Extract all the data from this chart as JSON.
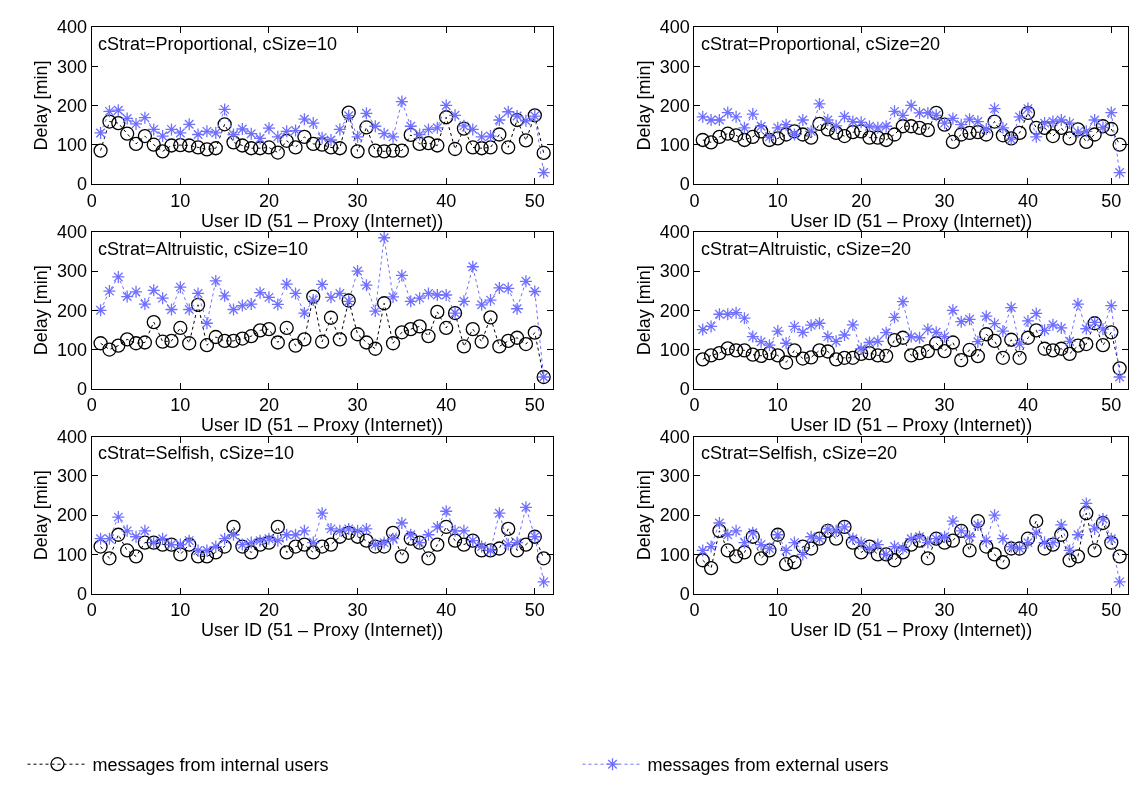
{
  "chart_data": [
    {
      "type": "line",
      "title": "cStrat=Proportional, cSize=10",
      "xlabel": "User ID (51 – Proxy (Internet))",
      "ylabel": "Delay [min]",
      "x": [
        1,
        2,
        3,
        4,
        5,
        6,
        7,
        8,
        9,
        10,
        11,
        12,
        13,
        14,
        15,
        16,
        17,
        18,
        19,
        20,
        21,
        22,
        23,
        24,
        25,
        26,
        27,
        28,
        29,
        30,
        31,
        32,
        33,
        34,
        35,
        36,
        37,
        38,
        39,
        40,
        41,
        42,
        43,
        44,
        45,
        46,
        47,
        48,
        49,
        50,
        51
      ],
      "xlim": [
        0,
        52
      ],
      "xticks": [
        0,
        10,
        20,
        30,
        40,
        50
      ],
      "ylim": [
        0,
        400
      ],
      "yticks": [
        0,
        100,
        200,
        300,
        400
      ],
      "legend": "bottom",
      "line_style": "dotted",
      "series": [
        {
          "name": "messages from internal users",
          "color": "#000000",
          "marker": "circle",
          "values": [
            85,
            159,
            155,
            128,
            102,
            122,
            100,
            83,
            98,
            99,
            98,
            93,
            88,
            91,
            152,
            106,
            98,
            91,
            91,
            93,
            80,
            110,
            93,
            120,
            102,
            100,
            93,
            91,
            182,
            83,
            144,
            85,
            83,
            85,
            85,
            125,
            102,
            104,
            98,
            170,
            89,
            141,
            93,
            91,
            93,
            126,
            93,
            163,
            111,
            175,
            79
          ]
        },
        {
          "name": "messages from external users",
          "color": "#7070ff",
          "marker": "cross",
          "values": [
            130,
            185,
            188,
            167,
            153,
            169,
            139,
            122,
            139,
            130,
            152,
            126,
            134,
            130,
            190,
            126,
            140,
            128,
            116,
            142,
            120,
            134,
            136,
            165,
            155,
            118,
            112,
            139,
            174,
            120,
            180,
            147,
            128,
            120,
            210,
            147,
            126,
            139,
            143,
            200,
            175,
            148,
            139,
            120,
            122,
            163,
            184,
            173,
            161,
            173,
            29
          ]
        }
      ]
    },
    {
      "type": "line",
      "title": "cStrat=Proportional, cSize=20",
      "xlabel": "User ID (51 – Proxy (Internet))",
      "ylabel": "Delay [min]",
      "x": [
        1,
        2,
        3,
        4,
        5,
        6,
        7,
        8,
        9,
        10,
        11,
        12,
        13,
        14,
        15,
        16,
        17,
        18,
        19,
        20,
        21,
        22,
        23,
        24,
        25,
        26,
        27,
        28,
        29,
        30,
        31,
        32,
        33,
        34,
        35,
        36,
        37,
        38,
        39,
        40,
        41,
        42,
        43,
        44,
        45,
        46,
        47,
        48,
        49,
        50,
        51
      ],
      "xlim": [
        0,
        52
      ],
      "xticks": [
        0,
        10,
        20,
        30,
        40,
        50
      ],
      "ylim": [
        0,
        400
      ],
      "yticks": [
        0,
        100,
        200,
        300,
        400
      ],
      "legend": "bottom",
      "line_style": "dotted",
      "series": [
        {
          "name": "messages from internal users",
          "color": "#000000",
          "marker": "circle",
          "values": [
            112,
            106,
            120,
            128,
            124,
            112,
            120,
            134,
            112,
            116,
            126,
            134,
            126,
            118,
            153,
            139,
            130,
            122,
            132,
            134,
            118,
            118,
            112,
            126,
            147,
            147,
            143,
            137,
            181,
            151,
            107,
            126,
            130,
            132,
            126,
            159,
            124,
            116,
            130,
            181,
            143,
            143,
            122,
            143,
            116,
            139,
            107,
            126,
            147,
            140,
            100
          ]
        },
        {
          "name": "messages from external users",
          "color": "#7070ff",
          "marker": "cross",
          "values": [
            171,
            163,
            163,
            182,
            171,
            143,
            178,
            147,
            120,
            143,
            151,
            126,
            163,
            134,
            204,
            163,
            148,
            172,
            159,
            157,
            147,
            143,
            147,
            185,
            175,
            200,
            181,
            181,
            175,
            155,
            167,
            151,
            165,
            159,
            140,
            192,
            143,
            114,
            171,
            192,
            120,
            155,
            159,
            163,
            155,
            132,
            134,
            163,
            144,
            182,
            29
          ]
        }
      ]
    },
    {
      "type": "line",
      "title": "cStrat=Altruistic, cSize=10",
      "xlabel": "User ID (51 – Proxy (Internet))",
      "ylabel": "Delay [min]",
      "x": [
        1,
        2,
        3,
        4,
        5,
        6,
        7,
        8,
        9,
        10,
        11,
        12,
        13,
        14,
        15,
        16,
        17,
        18,
        19,
        20,
        21,
        22,
        23,
        24,
        25,
        26,
        27,
        28,
        29,
        30,
        31,
        32,
        33,
        34,
        35,
        36,
        37,
        38,
        39,
        40,
        41,
        42,
        43,
        44,
        45,
        46,
        47,
        48,
        49,
        50,
        51
      ],
      "xlim": [
        0,
        52
      ],
      "xticks": [
        0,
        10,
        20,
        30,
        40,
        50
      ],
      "ylim": [
        0,
        400
      ],
      "yticks": [
        0,
        100,
        200,
        300,
        400
      ],
      "legend": "bottom",
      "line_style": "dotted",
      "series": [
        {
          "name": "messages from internal users",
          "color": "#000000",
          "marker": "circle",
          "values": [
            116,
            100,
            110,
            126,
            116,
            118,
            170,
            120,
            122,
            155,
            116,
            214,
            111,
            132,
            122,
            122,
            128,
            134,
            149,
            152,
            118,
            155,
            110,
            126,
            235,
            120,
            181,
            126,
            225,
            139,
            118,
            102,
            218,
            116,
            144,
            152,
            159,
            134,
            196,
            155,
            193,
            108,
            152,
            120,
            182,
            108,
            122,
            130,
            114,
            143,
            30
          ]
        },
        {
          "name": "messages from external users",
          "color": "#7070ff",
          "marker": "cross",
          "values": [
            200,
            249,
            285,
            235,
            247,
            216,
            251,
            231,
            202,
            259,
            202,
            243,
            167,
            275,
            237,
            202,
            212,
            216,
            245,
            233,
            215,
            267,
            243,
            193,
            226,
            266,
            233,
            243,
            223,
            300,
            264,
            198,
            385,
            234,
            289,
            223,
            231,
            243,
            239,
            239,
            193,
            223,
            311,
            214,
            226,
            257,
            256,
            204,
            274,
            248,
            30
          ]
        }
      ]
    },
    {
      "type": "line",
      "title": "cStrat=Altruistic, cSize=20",
      "xlabel": "User ID (51 – Proxy (Internet))",
      "ylabel": "Delay [min]",
      "x": [
        1,
        2,
        3,
        4,
        5,
        6,
        7,
        8,
        9,
        10,
        11,
        12,
        13,
        14,
        15,
        16,
        17,
        18,
        19,
        20,
        21,
        22,
        23,
        24,
        25,
        26,
        27,
        28,
        29,
        30,
        31,
        32,
        33,
        34,
        35,
        36,
        37,
        38,
        39,
        40,
        41,
        42,
        43,
        44,
        45,
        46,
        47,
        48,
        49,
        50,
        51
      ],
      "xlim": [
        0,
        52
      ],
      "xticks": [
        0,
        10,
        20,
        30,
        40,
        50
      ],
      "ylim": [
        0,
        400
      ],
      "yticks": [
        0,
        100,
        200,
        300,
        400
      ],
      "legend": "bottom",
      "line_style": "dotted",
      "series": [
        {
          "name": "messages from internal users",
          "color": "#000000",
          "marker": "circle",
          "values": [
            75,
            85,
            91,
            103,
            98,
            98,
            87,
            84,
            91,
            85,
            67,
            98,
            77,
            80,
            98,
            95,
            75,
            79,
            79,
            89,
            91,
            85,
            84,
            124,
            130,
            85,
            91,
            96,
            116,
            96,
            118,
            73,
            99,
            83,
            139,
            122,
            79,
            125,
            79,
            130,
            149,
            102,
            98,
            102,
            89,
            110,
            114,
            167,
            111,
            144,
            52
          ]
        },
        {
          "name": "messages from external users",
          "color": "#7070ff",
          "marker": "cross",
          "values": [
            151,
            159,
            190,
            190,
            194,
            180,
            133,
            120,
            111,
            147,
            116,
            159,
            144,
            162,
            167,
            133,
            121,
            137,
            163,
            102,
            118,
            121,
            143,
            182,
            222,
            133,
            130,
            152,
            144,
            133,
            200,
            171,
            177,
            120,
            185,
            166,
            147,
            207,
            114,
            173,
            192,
            149,
            163,
            155,
            121,
            216,
            153,
            169,
            152,
            212,
            30
          ]
        }
      ]
    },
    {
      "type": "line",
      "title": "cStrat=Selfish, cSize=10",
      "xlabel": "User ID (51 – Proxy (Internet))",
      "ylabel": "Delay [min]",
      "x": [
        1,
        2,
        3,
        4,
        5,
        6,
        7,
        8,
        9,
        10,
        11,
        12,
        13,
        14,
        15,
        16,
        17,
        18,
        19,
        20,
        21,
        22,
        23,
        24,
        25,
        26,
        27,
        28,
        29,
        30,
        31,
        32,
        33,
        34,
        35,
        36,
        37,
        38,
        39,
        40,
        41,
        42,
        43,
        44,
        45,
        46,
        47,
        48,
        49,
        50,
        51
      ],
      "xlim": [
        0,
        52
      ],
      "xticks": [
        0,
        10,
        20,
        30,
        40,
        50
      ],
      "ylim": [
        0,
        400
      ],
      "yticks": [
        0,
        100,
        200,
        300,
        400
      ],
      "legend": "bottom",
      "line_style": "dotted",
      "series": [
        {
          "name": "messages from internal users",
          "color": "#000000",
          "marker": "circle",
          "values": [
            120,
            90,
            150,
            110,
            95,
            130,
            130,
            125,
            125,
            100,
            125,
            95,
            95,
            105,
            120,
            170,
            120,
            105,
            125,
            130,
            170,
            105,
            120,
            125,
            105,
            120,
            125,
            145,
            155,
            145,
            135,
            120,
            120,
            155,
            95,
            140,
            130,
            90,
            125,
            170,
            135,
            125,
            135,
            110,
            110,
            115,
            165,
            110,
            125,
            145,
            90
          ]
        },
        {
          "name": "messages from external users",
          "color": "#7070ff",
          "marker": "cross",
          "values": [
            140,
            140,
            195,
            160,
            145,
            160,
            130,
            140,
            125,
            125,
            135,
            110,
            110,
            120,
            140,
            150,
            125,
            130,
            135,
            140,
            135,
            150,
            150,
            160,
            130,
            205,
            165,
            160,
            165,
            160,
            165,
            125,
            130,
            140,
            180,
            150,
            130,
            150,
            170,
            210,
            160,
            160,
            135,
            120,
            110,
            205,
            125,
            130,
            220,
            145,
            30
          ]
        }
      ]
    },
    {
      "type": "line",
      "title": "cStrat=Selfish, cSize=20",
      "xlabel": "User ID (51 – Proxy (Internet))",
      "ylabel": "Delay [min]",
      "x": [
        1,
        2,
        3,
        4,
        5,
        6,
        7,
        8,
        9,
        10,
        11,
        12,
        13,
        14,
        15,
        16,
        17,
        18,
        19,
        20,
        21,
        22,
        23,
        24,
        25,
        26,
        27,
        28,
        29,
        30,
        31,
        32,
        33,
        34,
        35,
        36,
        37,
        38,
        39,
        40,
        41,
        42,
        43,
        44,
        45,
        46,
        47,
        48,
        49,
        50,
        51
      ],
      "xlim": [
        0,
        52
      ],
      "xticks": [
        0,
        10,
        20,
        30,
        40,
        50
      ],
      "ylim": [
        0,
        400
      ],
      "yticks": [
        0,
        100,
        200,
        300,
        400
      ],
      "legend": "bottom",
      "line_style": "dotted",
      "series": [
        {
          "name": "messages from internal users",
          "color": "#000000",
          "marker": "circle",
          "values": [
            85,
            65,
            160,
            110,
            95,
            105,
            145,
            90,
            110,
            150,
            75,
            80,
            120,
            115,
            140,
            160,
            140,
            170,
            130,
            105,
            120,
            100,
            100,
            85,
            105,
            125,
            135,
            90,
            140,
            130,
            135,
            160,
            110,
            185,
            120,
            100,
            80,
            115,
            115,
            140,
            185,
            115,
            125,
            150,
            85,
            95,
            205,
            110,
            180,
            130,
            95
          ]
        },
        {
          "name": "messages from external users",
          "color": "#7070ff",
          "marker": "cross",
          "values": [
            110,
            120,
            180,
            150,
            160,
            130,
            155,
            125,
            115,
            150,
            110,
            130,
            100,
            145,
            140,
            165,
            160,
            170,
            140,
            130,
            115,
            125,
            100,
            120,
            115,
            140,
            145,
            130,
            140,
            145,
            185,
            160,
            145,
            175,
            135,
            200,
            140,
            120,
            115,
            130,
            155,
            130,
            130,
            175,
            110,
            150,
            230,
            165,
            190,
            140,
            30
          ]
        }
      ]
    }
  ]
}
